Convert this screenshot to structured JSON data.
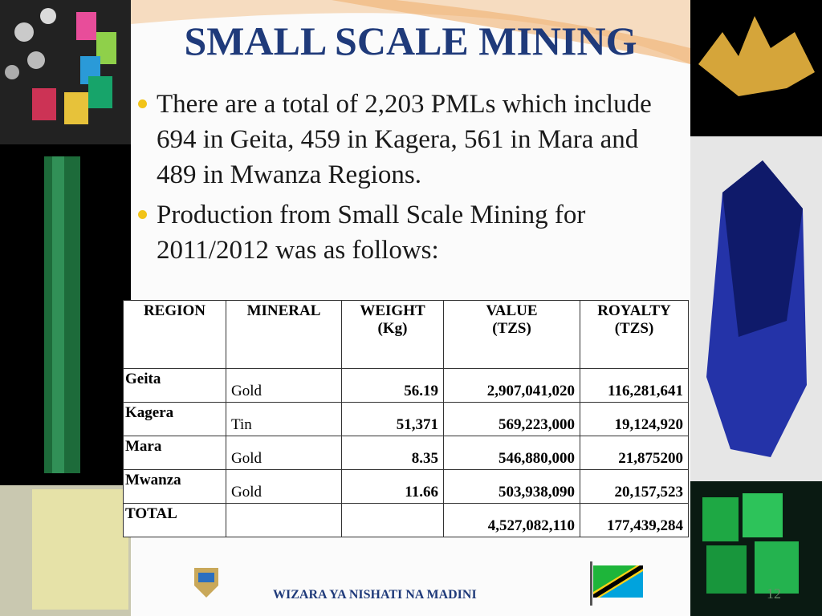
{
  "title": "SMALL SCALE MINING",
  "bullets": [
    "There are a total of 2,203 PMLs which include 694 in Geita, 459 in Kagera, 561 in Mara and 489 in Mwanza Regions.",
    "Production from Small Scale Mining for 2011/2012 was as follows:"
  ],
  "table": {
    "header": [
      [
        "REGION"
      ],
      [
        "MINERAL"
      ],
      [
        "WEIGHT",
        "(Kg)"
      ],
      [
        "VALUE",
        "(TZS)"
      ],
      [
        "ROYALTY",
        "(TZS)"
      ]
    ],
    "rows": [
      [
        "Geita",
        "Gold",
        "56.19",
        "2,907,041,020",
        "116,281,641"
      ],
      [
        "Kagera",
        "Tin",
        "51,371",
        "569,223,000",
        "19,124,920"
      ],
      [
        "Mara",
        "Gold",
        "8.35",
        "546,880,000",
        "21,875200"
      ],
      [
        "Mwanza",
        "Gold",
        "11.66",
        "503,938,090",
        "20,157,523"
      ],
      [
        "TOTAL",
        null,
        null,
        "4,527,082,110",
        "177,439,284"
      ]
    ]
  },
  "footer": "WIZARA YA NISHATI NA MADINI",
  "slide_number": "12"
}
